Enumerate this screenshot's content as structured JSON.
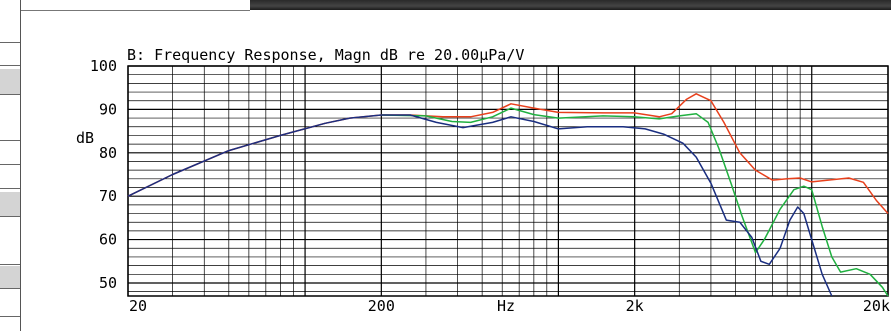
{
  "chart_data": {
    "type": "line",
    "title": "B: Frequency Response, Magn dB re 20.00μPa/V",
    "xlabel": "Hz",
    "ylabel": "dB",
    "xscale": "log",
    "xlim": [
      20,
      20000
    ],
    "ylim": [
      47,
      100
    ],
    "x_tick_labels": [
      "20",
      "200",
      "2k",
      "20k"
    ],
    "y_tick_labels": [
      "100",
      "90",
      "80",
      "70",
      "60",
      "50"
    ],
    "grid": true,
    "series": [
      {
        "color": "#e8401c",
        "points": [
          [
            20,
            70
          ],
          [
            30,
            75
          ],
          [
            50,
            80.5
          ],
          [
            80,
            84
          ],
          [
            120,
            86.8
          ],
          [
            150,
            88
          ],
          [
            200,
            88.7
          ],
          [
            260,
            88.7
          ],
          [
            350,
            88.3
          ],
          [
            450,
            88.3
          ],
          [
            550,
            89.3
          ],
          [
            650,
            91.3
          ],
          [
            800,
            90.3
          ],
          [
            1000,
            89.3
          ],
          [
            1500,
            89.2
          ],
          [
            2000,
            89.2
          ],
          [
            2500,
            88.3
          ],
          [
            2800,
            89
          ],
          [
            3200,
            92.3
          ],
          [
            3500,
            93.6
          ],
          [
            4000,
            92
          ],
          [
            4500,
            87
          ],
          [
            5200,
            80
          ],
          [
            6000,
            76
          ],
          [
            7000,
            73.7
          ],
          [
            8000,
            74
          ],
          [
            9000,
            74.2
          ],
          [
            10000,
            73.3
          ],
          [
            12000,
            73.8
          ],
          [
            14000,
            74.2
          ],
          [
            16000,
            73.2
          ],
          [
            18000,
            69
          ],
          [
            20000,
            66
          ]
        ]
      },
      {
        "color": "#20b040",
        "points": [
          [
            200,
            88.7
          ],
          [
            300,
            88.5
          ],
          [
            380,
            87.2
          ],
          [
            450,
            87
          ],
          [
            550,
            88.3
          ],
          [
            650,
            90.3
          ],
          [
            800,
            88.8
          ],
          [
            1000,
            88
          ],
          [
            1500,
            88.5
          ],
          [
            2000,
            88.3
          ],
          [
            2500,
            87.8
          ],
          [
            3000,
            88.5
          ],
          [
            3500,
            89
          ],
          [
            3900,
            87
          ],
          [
            4300,
            81
          ],
          [
            4800,
            73
          ],
          [
            5300,
            65.5
          ],
          [
            6000,
            57
          ],
          [
            6500,
            60
          ],
          [
            7500,
            67
          ],
          [
            8500,
            71.5
          ],
          [
            9300,
            72.3
          ],
          [
            10000,
            71.5
          ],
          [
            11000,
            63
          ],
          [
            12000,
            56
          ],
          [
            13000,
            52.5
          ],
          [
            15000,
            53.3
          ],
          [
            17000,
            52
          ],
          [
            19000,
            49
          ],
          [
            20000,
            47
          ]
        ]
      },
      {
        "color": "#1a2e80",
        "points": [
          [
            20,
            70
          ],
          [
            30,
            75
          ],
          [
            50,
            80.5
          ],
          [
            80,
            84
          ],
          [
            120,
            86.8
          ],
          [
            150,
            88
          ],
          [
            200,
            88.7
          ],
          [
            260,
            88.7
          ],
          [
            330,
            87
          ],
          [
            420,
            85.8
          ],
          [
            550,
            87
          ],
          [
            650,
            88.3
          ],
          [
            800,
            87.2
          ],
          [
            1000,
            85.5
          ],
          [
            1300,
            86
          ],
          [
            1800,
            86
          ],
          [
            2200,
            85.5
          ],
          [
            2600,
            84.3
          ],
          [
            3100,
            82.2
          ],
          [
            3500,
            79
          ],
          [
            4000,
            73
          ],
          [
            4600,
            64.5
          ],
          [
            5200,
            64
          ],
          [
            5800,
            60.5
          ],
          [
            6300,
            55
          ],
          [
            6800,
            54.3
          ],
          [
            7500,
            58
          ],
          [
            8200,
            64.5
          ],
          [
            8800,
            67.5
          ],
          [
            9300,
            66
          ],
          [
            10000,
            60
          ],
          [
            11000,
            52
          ],
          [
            12000,
            47
          ]
        ]
      }
    ]
  }
}
